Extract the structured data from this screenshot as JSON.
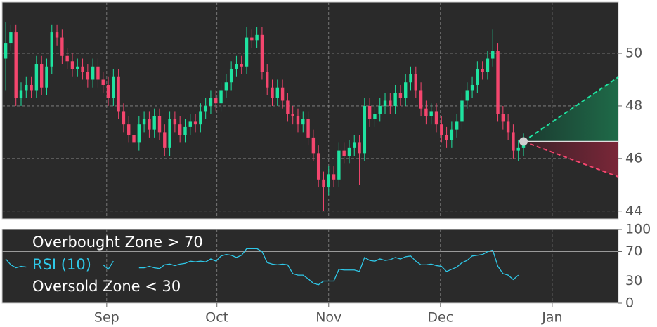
{
  "chart_data": [
    {
      "type": "candlestick",
      "open": [
        49.8,
        50.4,
        50.8,
        48.3,
        48.6,
        48.8,
        48.6,
        49.6,
        48.7,
        49.5,
        50.8,
        50.6,
        49.9,
        49.7,
        49.4,
        49.5,
        49.3,
        49.0,
        49.5,
        49.0,
        48.8,
        48.3,
        49.1,
        47.8,
        47.3,
        46.9,
        46.6,
        47.3,
        47.5,
        47.1,
        47.6,
        47.0,
        46.4,
        47.5,
        47.3,
        46.9,
        47.2,
        47.4,
        47.3,
        47.8,
        48.0,
        48.3,
        48.1,
        48.6,
        48.9,
        49.4,
        49.6,
        49.5,
        50.6,
        50.5,
        50.7,
        49.3,
        48.7,
        48.3,
        48.7,
        48.2,
        47.7,
        47.6,
        47.3,
        47.5,
        46.8,
        46.2,
        45.2,
        44.9,
        45.4,
        45.2,
        46.3,
        46.1,
        46.4,
        46.6,
        46.2,
        48.0,
        47.5,
        47.7,
        48.0,
        48.2,
        48.0,
        48.5,
        48.3,
        48.9,
        49.2,
        48.6,
        47.9,
        47.6,
        47.8,
        47.3,
        46.9,
        46.7,
        47.1,
        47.4,
        48.2,
        48.6,
        48.8,
        49.4,
        49.3,
        49.8,
        50.1,
        47.7,
        47.4,
        47.0,
        46.3,
        46.4
      ],
      "high": [
        51.2,
        51.1,
        51.1,
        48.9,
        49.1,
        49.1,
        49.9,
        49.9,
        49.8,
        51.1,
        51.1,
        50.9,
        50.2,
        50.0,
        49.8,
        49.8,
        49.6,
        49.8,
        49.8,
        49.3,
        49.1,
        49.4,
        49.4,
        48.1,
        47.6,
        47.2,
        47.6,
        47.8,
        47.8,
        47.9,
        47.9,
        47.3,
        47.8,
        47.8,
        47.6,
        47.5,
        47.7,
        47.7,
        48.1,
        48.3,
        48.6,
        48.6,
        48.9,
        49.2,
        49.7,
        49.9,
        49.9,
        51.0,
        50.9,
        51.0,
        51.0,
        49.6,
        49.0,
        49.0,
        49.0,
        48.5,
        48.0,
        47.9,
        47.8,
        47.8,
        47.1,
        46.5,
        45.5,
        45.7,
        45.7,
        46.6,
        46.6,
        46.7,
        46.9,
        46.9,
        48.3,
        48.3,
        48.0,
        48.3,
        48.5,
        48.5,
        48.8,
        48.8,
        49.2,
        49.5,
        49.5,
        48.9,
        48.2,
        48.1,
        48.1,
        47.6,
        47.2,
        47.4,
        47.7,
        48.5,
        48.9,
        49.1,
        49.7,
        49.7,
        50.1,
        50.9,
        50.4,
        48.0,
        47.7,
        47.3,
        46.7,
        46.95
      ],
      "low": [
        48.6,
        50.1,
        48.0,
        48.0,
        48.3,
        48.3,
        48.3,
        48.4,
        48.4,
        49.2,
        50.3,
        49.6,
        49.4,
        49.1,
        49.1,
        49.0,
        48.7,
        48.7,
        48.7,
        48.5,
        48.0,
        48.0,
        47.5,
        47.0,
        46.6,
        46.0,
        46.3,
        47.0,
        46.8,
        46.8,
        46.7,
        46.1,
        46.1,
        47.0,
        46.6,
        46.6,
        46.9,
        47.0,
        47.0,
        47.5,
        47.7,
        47.8,
        47.8,
        48.3,
        48.6,
        49.1,
        49.2,
        49.2,
        50.2,
        50.2,
        49.0,
        48.4,
        48.0,
        48.0,
        47.9,
        47.4,
        47.3,
        47.0,
        47.0,
        46.5,
        45.9,
        44.9,
        44.0,
        44.6,
        44.9,
        44.9,
        45.8,
        45.8,
        46.1,
        45.0,
        45.9,
        47.2,
        47.2,
        47.4,
        47.7,
        47.7,
        47.7,
        48.0,
        48.0,
        48.6,
        48.3,
        47.6,
        47.3,
        47.3,
        47.0,
        46.6,
        46.4,
        46.4,
        46.8,
        47.1,
        47.9,
        48.3,
        48.5,
        49.0,
        49.0,
        49.5,
        47.4,
        47.1,
        46.7,
        46.0,
        45.9,
        46.1
      ],
      "close": [
        50.4,
        50.8,
        48.3,
        48.6,
        48.8,
        48.6,
        49.6,
        48.7,
        49.5,
        50.8,
        50.6,
        49.9,
        49.7,
        49.4,
        49.5,
        49.3,
        49.0,
        49.5,
        49.0,
        48.8,
        48.3,
        49.1,
        47.8,
        47.3,
        46.9,
        46.6,
        47.3,
        47.5,
        47.1,
        47.6,
        47.0,
        46.4,
        47.5,
        47.3,
        46.9,
        47.2,
        47.4,
        47.3,
        47.8,
        48.0,
        48.3,
        48.1,
        48.6,
        48.9,
        49.4,
        49.6,
        49.5,
        50.6,
        50.5,
        50.7,
        49.3,
        48.7,
        48.3,
        48.7,
        48.2,
        47.7,
        47.6,
        47.3,
        47.5,
        46.8,
        46.2,
        45.2,
        44.9,
        45.4,
        45.2,
        46.3,
        46.1,
        46.4,
        46.6,
        46.2,
        48.0,
        47.5,
        47.7,
        48.0,
        48.2,
        48.0,
        48.5,
        48.3,
        48.9,
        49.2,
        48.6,
        47.9,
        47.6,
        47.8,
        47.3,
        46.9,
        46.7,
        47.1,
        47.4,
        48.2,
        48.6,
        48.8,
        49.4,
        49.3,
        49.8,
        50.1,
        47.7,
        47.4,
        47.0,
        46.3,
        46.4,
        46.65
      ],
      "up_color": "#1fe3a0",
      "down_color": "#f4466e",
      "forecast": {
        "x": [
          101,
          119.5
        ],
        "upper": [
          46.65,
          49.1
        ],
        "lower": [
          46.65,
          45.3
        ]
      },
      "xlim": [
        -0.7,
        119.5
      ],
      "ylim": [
        43.7,
        51.95
      ],
      "yticks": [
        44,
        46,
        48,
        50
      ],
      "grid": true
    },
    {
      "type": "line",
      "series": [
        {
          "name": "RSI (10)",
          "color": "#2fc8e8",
          "values": [
            60,
            52,
            48,
            50,
            49,
            null,
            null,
            null,
            null,
            null,
            null,
            null,
            null,
            null,
            null,
            null,
            null,
            null,
            null,
            52,
            46,
            57,
            null,
            null,
            null,
            null,
            48,
            48,
            50,
            48,
            47,
            52,
            53,
            51,
            53,
            54,
            57,
            56,
            57,
            56,
            60,
            57,
            64,
            66,
            65,
            62,
            65,
            74,
            74,
            74,
            70,
            55,
            53,
            52,
            53,
            52,
            40,
            38,
            38,
            33,
            27,
            25,
            30,
            30,
            30,
            46,
            45,
            45,
            45,
            43,
            62,
            58,
            57,
            60,
            58,
            59,
            62,
            60,
            63,
            64,
            57,
            52,
            52,
            53,
            51,
            50,
            43,
            46,
            49,
            55,
            58,
            64,
            65,
            66,
            70,
            72,
            50,
            40,
            38,
            32,
            38,
            null
          ]
        }
      ],
      "annotations": [
        "Overbought Zone > 70",
        "Oversold Zone < 30"
      ],
      "xlim": [
        -0.7,
        119.5
      ],
      "ylim": [
        0,
        100
      ],
      "yticks": [
        0,
        30,
        70,
        100
      ],
      "xticks": [
        {
          "value": 19.7,
          "label": "Sep"
        },
        {
          "value": 41.2,
          "label": "Oct"
        },
        {
          "value": 63,
          "label": "Nov"
        },
        {
          "value": 84.8,
          "label": "Dec"
        },
        {
          "value": 106.6,
          "label": "Jan"
        }
      ]
    }
  ]
}
